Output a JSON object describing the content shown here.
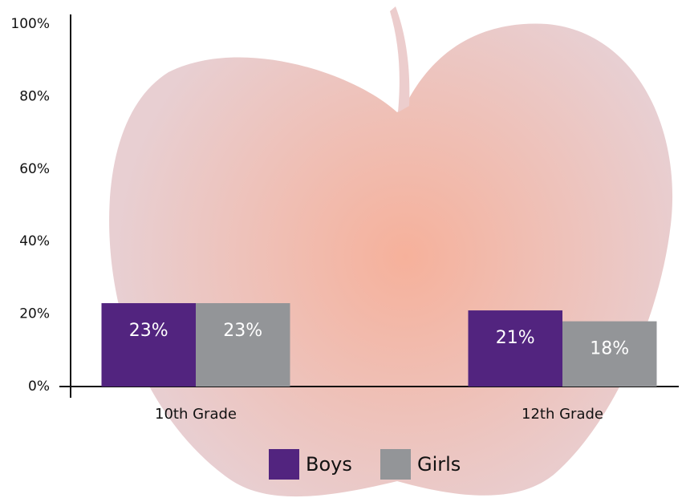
{
  "chart_data": {
    "type": "bar",
    "categories": [
      "10th Grade",
      "12th Grade"
    ],
    "series": [
      {
        "name": "Boys",
        "color": "#52247f",
        "values": [
          23,
          21
        ],
        "value_labels": [
          "23%",
          "21%"
        ]
      },
      {
        "name": "Girls",
        "color": "#939598",
        "values": [
          23,
          18
        ],
        "value_labels": [
          "23%",
          "18%"
        ]
      }
    ],
    "ylim": [
      0,
      100
    ],
    "yticks": [
      {
        "value": 0,
        "label": "0%"
      },
      {
        "value": 20,
        "label": "20%"
      },
      {
        "value": 40,
        "label": "40%"
      },
      {
        "value": 60,
        "label": "60%"
      },
      {
        "value": 80,
        "label": "80%"
      },
      {
        "value": 100,
        "label": "100%"
      }
    ],
    "grid": false,
    "legend": "bottom"
  }
}
